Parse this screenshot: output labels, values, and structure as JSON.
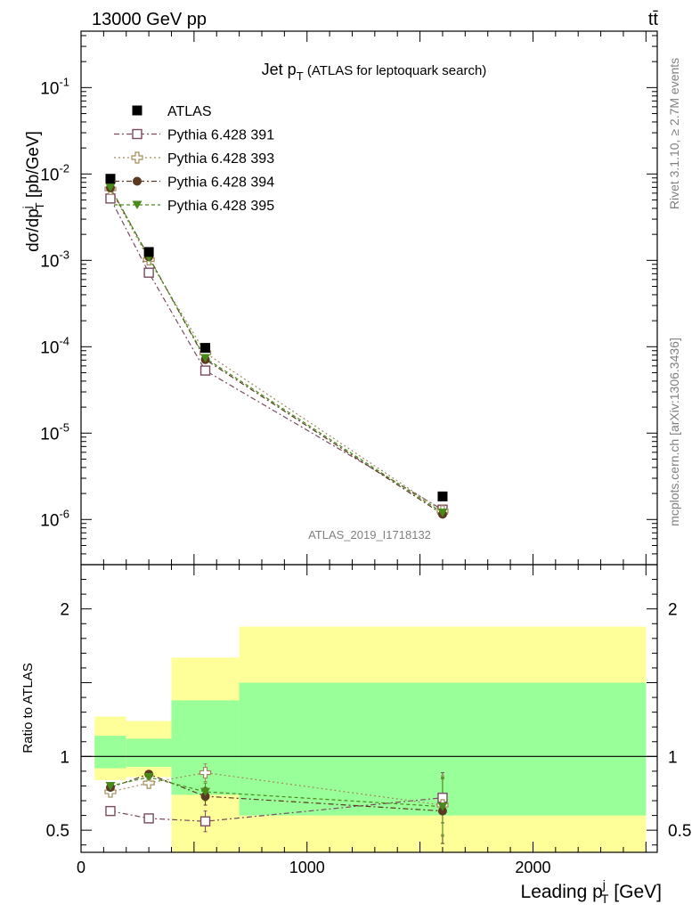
{
  "header": {
    "left": "13000 GeV pp",
    "right": "tt̄"
  },
  "side": {
    "rivet": "Rivet 3.1.10, ≥ 2.7M events",
    "mcplots": "mcplots.cern.ch [arXiv:1306.3436]"
  },
  "chart_data": {
    "type": "scatter",
    "title": {
      "main": "Jet p",
      "sub": "T",
      "rest": " (ATLAS for leptoquark search)"
    },
    "analysis": "ATLAS_2019_I1718132",
    "xlabel": {
      "main": "Leading p",
      "sup": "j",
      "sub": "T",
      "unit": " [GeV]"
    },
    "ylabel_top": {
      "pre": "dσ/dp",
      "sup": "j",
      "sub": "T",
      "unit": " [pb/GeV]"
    },
    "ylabel_ratio": "Ratio to ATLAS",
    "xlim": [
      0,
      2550
    ],
    "ylim_top": [
      3e-07,
      0.45
    ],
    "ylim_ratio": [
      0.35,
      2.3
    ],
    "yscale_top": "log",
    "x_ticks": [
      "0",
      "1000",
      "2000"
    ],
    "y_ticks_top": [
      {
        "base": "10",
        "exp": "-6"
      },
      {
        "base": "10",
        "exp": "-5"
      },
      {
        "base": "10",
        "exp": "-4"
      },
      {
        "base": "10",
        "exp": "-3"
      },
      {
        "base": "10",
        "exp": "-2"
      },
      {
        "base": "10",
        "exp": "-1"
      }
    ],
    "y_ticks_ratio": [
      "0.5",
      "1",
      "2"
    ],
    "legend_position": "top-left",
    "bins": [
      {
        "lo": 60,
        "hi": 200,
        "inner": [
          0.92,
          1.14
        ],
        "outer": [
          0.84,
          1.27
        ]
      },
      {
        "lo": 200,
        "hi": 400,
        "inner": [
          0.93,
          1.12
        ],
        "outer": [
          0.86,
          1.24
        ]
      },
      {
        "lo": 400,
        "hi": 700,
        "inner": [
          0.74,
          1.38
        ],
        "outer": [
          0.35,
          1.67
        ]
      },
      {
        "lo": 700,
        "hi": 2500,
        "inner": [
          0.6,
          1.5
        ],
        "outer": [
          0.35,
          1.88
        ]
      }
    ],
    "data": {
      "name": "ATLAS",
      "x": [
        130,
        300,
        550,
        1600
      ],
      "y": [
        0.0088,
        0.00125,
        9.7e-05,
        1.85e-06
      ]
    },
    "series": [
      {
        "name": "Pythia 6.428 391",
        "color": "#7a4a60",
        "marker": "open-square",
        "dash": "6,3,2,3",
        "x": [
          130,
          300,
          550,
          1600
        ],
        "y": [
          0.0052,
          0.00072,
          5.3e-05,
          1.3e-06
        ],
        "ratio": [
          0.63,
          0.58,
          0.56,
          0.72
        ],
        "ratio_err": [
          0.01,
          0.015,
          0.07,
          0.17
        ]
      },
      {
        "name": "Pythia 6.428 393",
        "color": "#a08a5a",
        "marker": "open-cross",
        "dash": "2,3",
        "x": [
          130,
          300,
          550,
          1600
        ],
        "y": [
          0.0067,
          0.00102,
          8.5e-05,
          1.25e-06
        ],
        "ratio": [
          0.76,
          0.82,
          0.89,
          0.67
        ],
        "ratio_err": [
          0.01,
          0.02,
          0.06,
          0.2
        ]
      },
      {
        "name": "Pythia 6.428 394",
        "color": "#5a3a22",
        "marker": "filled-circle",
        "dash": "6,3,2,3",
        "x": [
          130,
          300,
          550,
          1600
        ],
        "y": [
          0.0069,
          0.0011,
          7.1e-05,
          1.15e-06
        ],
        "ratio": [
          0.79,
          0.88,
          0.73,
          0.63
        ],
        "ratio_err": [
          0.01,
          0.02,
          0.06,
          0.22
        ]
      },
      {
        "name": "Pythia 6.428 395",
        "color": "#4a8a1a",
        "marker": "filled-triangle-down",
        "dash": "4,3",
        "x": [
          130,
          300,
          550,
          1600
        ],
        "y": [
          0.007,
          0.00108,
          7.4e-05,
          1.2e-06
        ],
        "ratio": [
          0.8,
          0.86,
          0.76,
          0.66
        ],
        "ratio_err": [
          0.01,
          0.02,
          0.06,
          0.2
        ]
      }
    ],
    "band_colors": {
      "inner": "#99ff99",
      "outer": "#ffff99"
    }
  }
}
